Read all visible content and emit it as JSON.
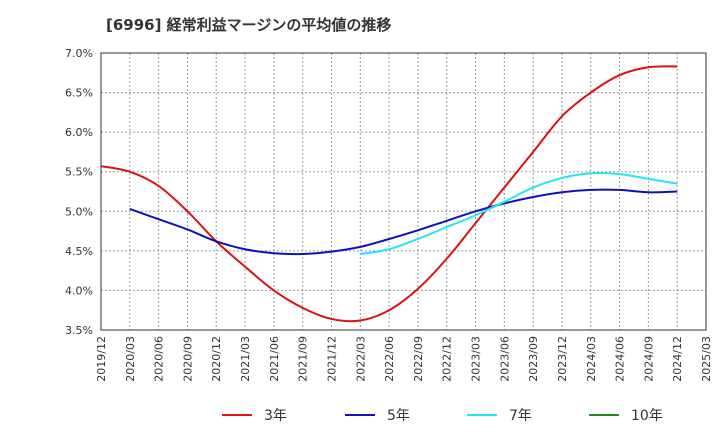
{
  "chart_data": {
    "type": "line",
    "title": "[6996]  経常利益マージンの平均値の推移",
    "xlabel": "",
    "ylabel": "",
    "x_ticks": [
      "2019/12",
      "2020/03",
      "2020/06",
      "2020/09",
      "2020/12",
      "2021/03",
      "2021/06",
      "2021/09",
      "2021/12",
      "2022/03",
      "2022/06",
      "2022/09",
      "2022/12",
      "2023/03",
      "2023/06",
      "2023/09",
      "2023/12",
      "2024/03",
      "2024/06",
      "2024/09",
      "2024/12",
      "2025/03"
    ],
    "y_ticks": [
      "3.5%",
      "4.0%",
      "4.5%",
      "5.0%",
      "5.5%",
      "6.0%",
      "6.5%",
      "7.0%"
    ],
    "ylim": [
      3.5,
      7.0
    ],
    "grid": true,
    "legend_position": "bottom",
    "series": [
      {
        "name": "3年",
        "color": "#dd1111",
        "points": [
          [
            "2019/12",
            5.57
          ],
          [
            "2020/03",
            5.5
          ],
          [
            "2020/06",
            5.32
          ],
          [
            "2020/09",
            5.0
          ],
          [
            "2020/12",
            4.62
          ],
          [
            "2021/03",
            4.3
          ],
          [
            "2021/06",
            4.0
          ],
          [
            "2021/09",
            3.78
          ],
          [
            "2021/12",
            3.64
          ],
          [
            "2022/03",
            3.62
          ],
          [
            "2022/06",
            3.75
          ],
          [
            "2022/09",
            4.02
          ],
          [
            "2022/12",
            4.4
          ],
          [
            "2023/03",
            4.85
          ],
          [
            "2023/06",
            5.3
          ],
          [
            "2023/09",
            5.75
          ],
          [
            "2023/12",
            6.2
          ],
          [
            "2024/03",
            6.5
          ],
          [
            "2024/06",
            6.72
          ],
          [
            "2024/09",
            6.82
          ],
          [
            "2024/12",
            6.83
          ]
        ]
      },
      {
        "name": "5年",
        "color": "#1111bb",
        "points": [
          [
            "2020/03",
            5.03
          ],
          [
            "2020/06",
            4.9
          ],
          [
            "2020/09",
            4.77
          ],
          [
            "2020/12",
            4.62
          ],
          [
            "2021/03",
            4.52
          ],
          [
            "2021/06",
            4.47
          ],
          [
            "2021/09",
            4.46
          ],
          [
            "2021/12",
            4.49
          ],
          [
            "2022/03",
            4.55
          ],
          [
            "2022/06",
            4.65
          ],
          [
            "2022/09",
            4.76
          ],
          [
            "2022/12",
            4.88
          ],
          [
            "2023/03",
            5.0
          ],
          [
            "2023/06",
            5.1
          ],
          [
            "2023/09",
            5.18
          ],
          [
            "2023/12",
            5.24
          ],
          [
            "2024/03",
            5.27
          ],
          [
            "2024/06",
            5.27
          ],
          [
            "2024/09",
            5.24
          ],
          [
            "2024/12",
            5.25
          ]
        ]
      },
      {
        "name": "7年",
        "color": "#22e5ee",
        "points": [
          [
            "2022/03",
            4.46
          ],
          [
            "2022/06",
            4.52
          ],
          [
            "2022/09",
            4.65
          ],
          [
            "2022/12",
            4.8
          ],
          [
            "2023/03",
            4.95
          ],
          [
            "2023/06",
            5.12
          ],
          [
            "2023/09",
            5.3
          ],
          [
            "2023/12",
            5.42
          ],
          [
            "2024/03",
            5.48
          ],
          [
            "2024/06",
            5.47
          ],
          [
            "2024/09",
            5.41
          ],
          [
            "2024/12",
            5.35
          ]
        ]
      },
      {
        "name": "10年",
        "color": "#228822",
        "points": []
      }
    ]
  }
}
